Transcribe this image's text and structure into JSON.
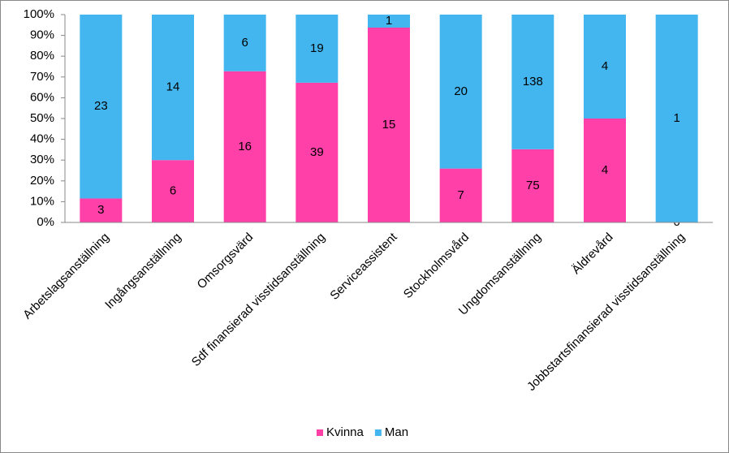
{
  "chart_data": {
    "type": "bar",
    "stacking": "percent",
    "categories": [
      "Arbetslagsanställning",
      "Ingångsanställning",
      "Omsorgsvärd",
      "Sdf finansierad visstidsanställning",
      "Serviceassistent",
      "Stockholmsvård",
      "Ungdomsanställning",
      "Äldrevård",
      "Jobbstartsfinansierad visstidsanställning"
    ],
    "series": [
      {
        "name": "Kvinna",
        "color": "#ff40a8",
        "values": [
          3,
          6,
          16,
          39,
          15,
          7,
          75,
          4,
          0
        ]
      },
      {
        "name": "Man",
        "color": "#43b6ef",
        "values": [
          23,
          14,
          6,
          19,
          1,
          20,
          138,
          4,
          1
        ]
      }
    ],
    "ylim": [
      0,
      100
    ],
    "yticks": [
      {
        "value": 0,
        "label": "0%"
      },
      {
        "value": 10,
        "label": "10%"
      },
      {
        "value": 20,
        "label": "20%"
      },
      {
        "value": 30,
        "label": "30%"
      },
      {
        "value": 40,
        "label": "40%"
      },
      {
        "value": 50,
        "label": "50%"
      },
      {
        "value": 60,
        "label": "60%"
      },
      {
        "value": 70,
        "label": "70%"
      },
      {
        "value": 80,
        "label": "80%"
      },
      {
        "value": 90,
        "label": "90%"
      },
      {
        "value": 100,
        "label": "100%"
      }
    ],
    "legend": "bottom"
  }
}
